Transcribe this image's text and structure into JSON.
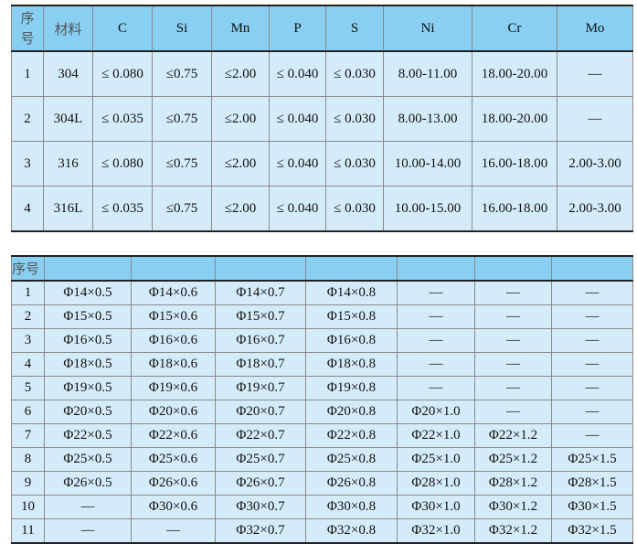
{
  "composition": {
    "headers": [
      "序号",
      "材料",
      "C",
      "Si",
      "Mn",
      "P",
      "S",
      "Ni",
      "Cr",
      "Mo"
    ],
    "rows": [
      [
        "1",
        "304",
        "≤ 0.080",
        "≤0.75",
        "≤2.00",
        "≤ 0.040",
        "≤ 0.030",
        "8.00-11.00",
        "18.00-20.00",
        "—"
      ],
      [
        "2",
        "304L",
        "≤ 0.035",
        "≤0.75",
        "≤2.00",
        "≤ 0.040",
        "≤ 0.030",
        "8.00-13.00",
        "18.00-20.00",
        "—"
      ],
      [
        "3",
        "316",
        "≤ 0.080",
        "≤0.75",
        "≤2.00",
        "≤ 0.040",
        "≤ 0.030",
        "10.00-14.00",
        "16.00-18.00",
        "2.00-3.00"
      ],
      [
        "4",
        "316L",
        "≤ 0.035",
        "≤0.75",
        "≤2.00",
        "≤ 0.040",
        "≤ 0.030",
        "10.00-15.00",
        "16.00-18.00",
        "2.00-3.00"
      ]
    ]
  },
  "sizes": {
    "headers": [
      "序号",
      "",
      "",
      "",
      "",
      "",
      "",
      ""
    ],
    "rows": [
      [
        "1",
        "Φ14×0.5",
        "Φ14×0.6",
        "Φ14×0.7",
        "Φ14×0.8",
        "—",
        "—",
        "—"
      ],
      [
        "2",
        "Φ15×0.5",
        "Φ15×0.6",
        "Φ15×0.7",
        "Φ15×0.8",
        "—",
        "—",
        "—"
      ],
      [
        "3",
        "Φ16×0.5",
        "Φ16×0.6",
        "Φ16×0.7",
        "Φ16×0.8",
        "—",
        "—",
        "—"
      ],
      [
        "4",
        "Φ18×0.5",
        "Φ18×0.6",
        "Φ18×0.7",
        "Φ18×0.8",
        "—",
        "—",
        "—"
      ],
      [
        "5",
        "Φ19×0.5",
        "Φ19×0.6",
        "Φ19×0.7",
        "Φ19×0.8",
        "—",
        "—",
        "—"
      ],
      [
        "6",
        "Φ20×0.5",
        "Φ20×0.6",
        "Φ20×0.7",
        "Φ20×0.8",
        "Φ20×1.0",
        "—",
        "—"
      ],
      [
        "7",
        "Φ22×0.5",
        "Φ22×0.6",
        "Φ22×0.7",
        "Φ22×0.8",
        "Φ22×1.0",
        "Φ22×1.2",
        "—"
      ],
      [
        "8",
        "Φ25×0.5",
        "Φ25×0.6",
        "Φ25×0.7",
        "Φ25×0.8",
        "Φ25×1.0",
        "Φ25×1.2",
        "Φ25×1.5"
      ],
      [
        "9",
        "Φ26×0.5",
        "Φ26×0.6",
        "Φ26×0.7",
        "Φ26×0.8",
        "Φ28×1.0",
        "Φ28×1.2",
        "Φ28×1.5"
      ],
      [
        "10",
        "—",
        "Φ30×0.6",
        "Φ30×0.7",
        "Φ30×0.8",
        "Φ30×1.0",
        "Φ30×1.2",
        "Φ30×1.5"
      ],
      [
        "11",
        "—",
        "—",
        "Φ32×0.7",
        "Φ32×0.8",
        "Φ32×1.0",
        "Φ32×1.2",
        "Φ32×1.5"
      ]
    ]
  },
  "colors": {
    "header": "#88cff2",
    "cell": "#d4ecf9"
  }
}
